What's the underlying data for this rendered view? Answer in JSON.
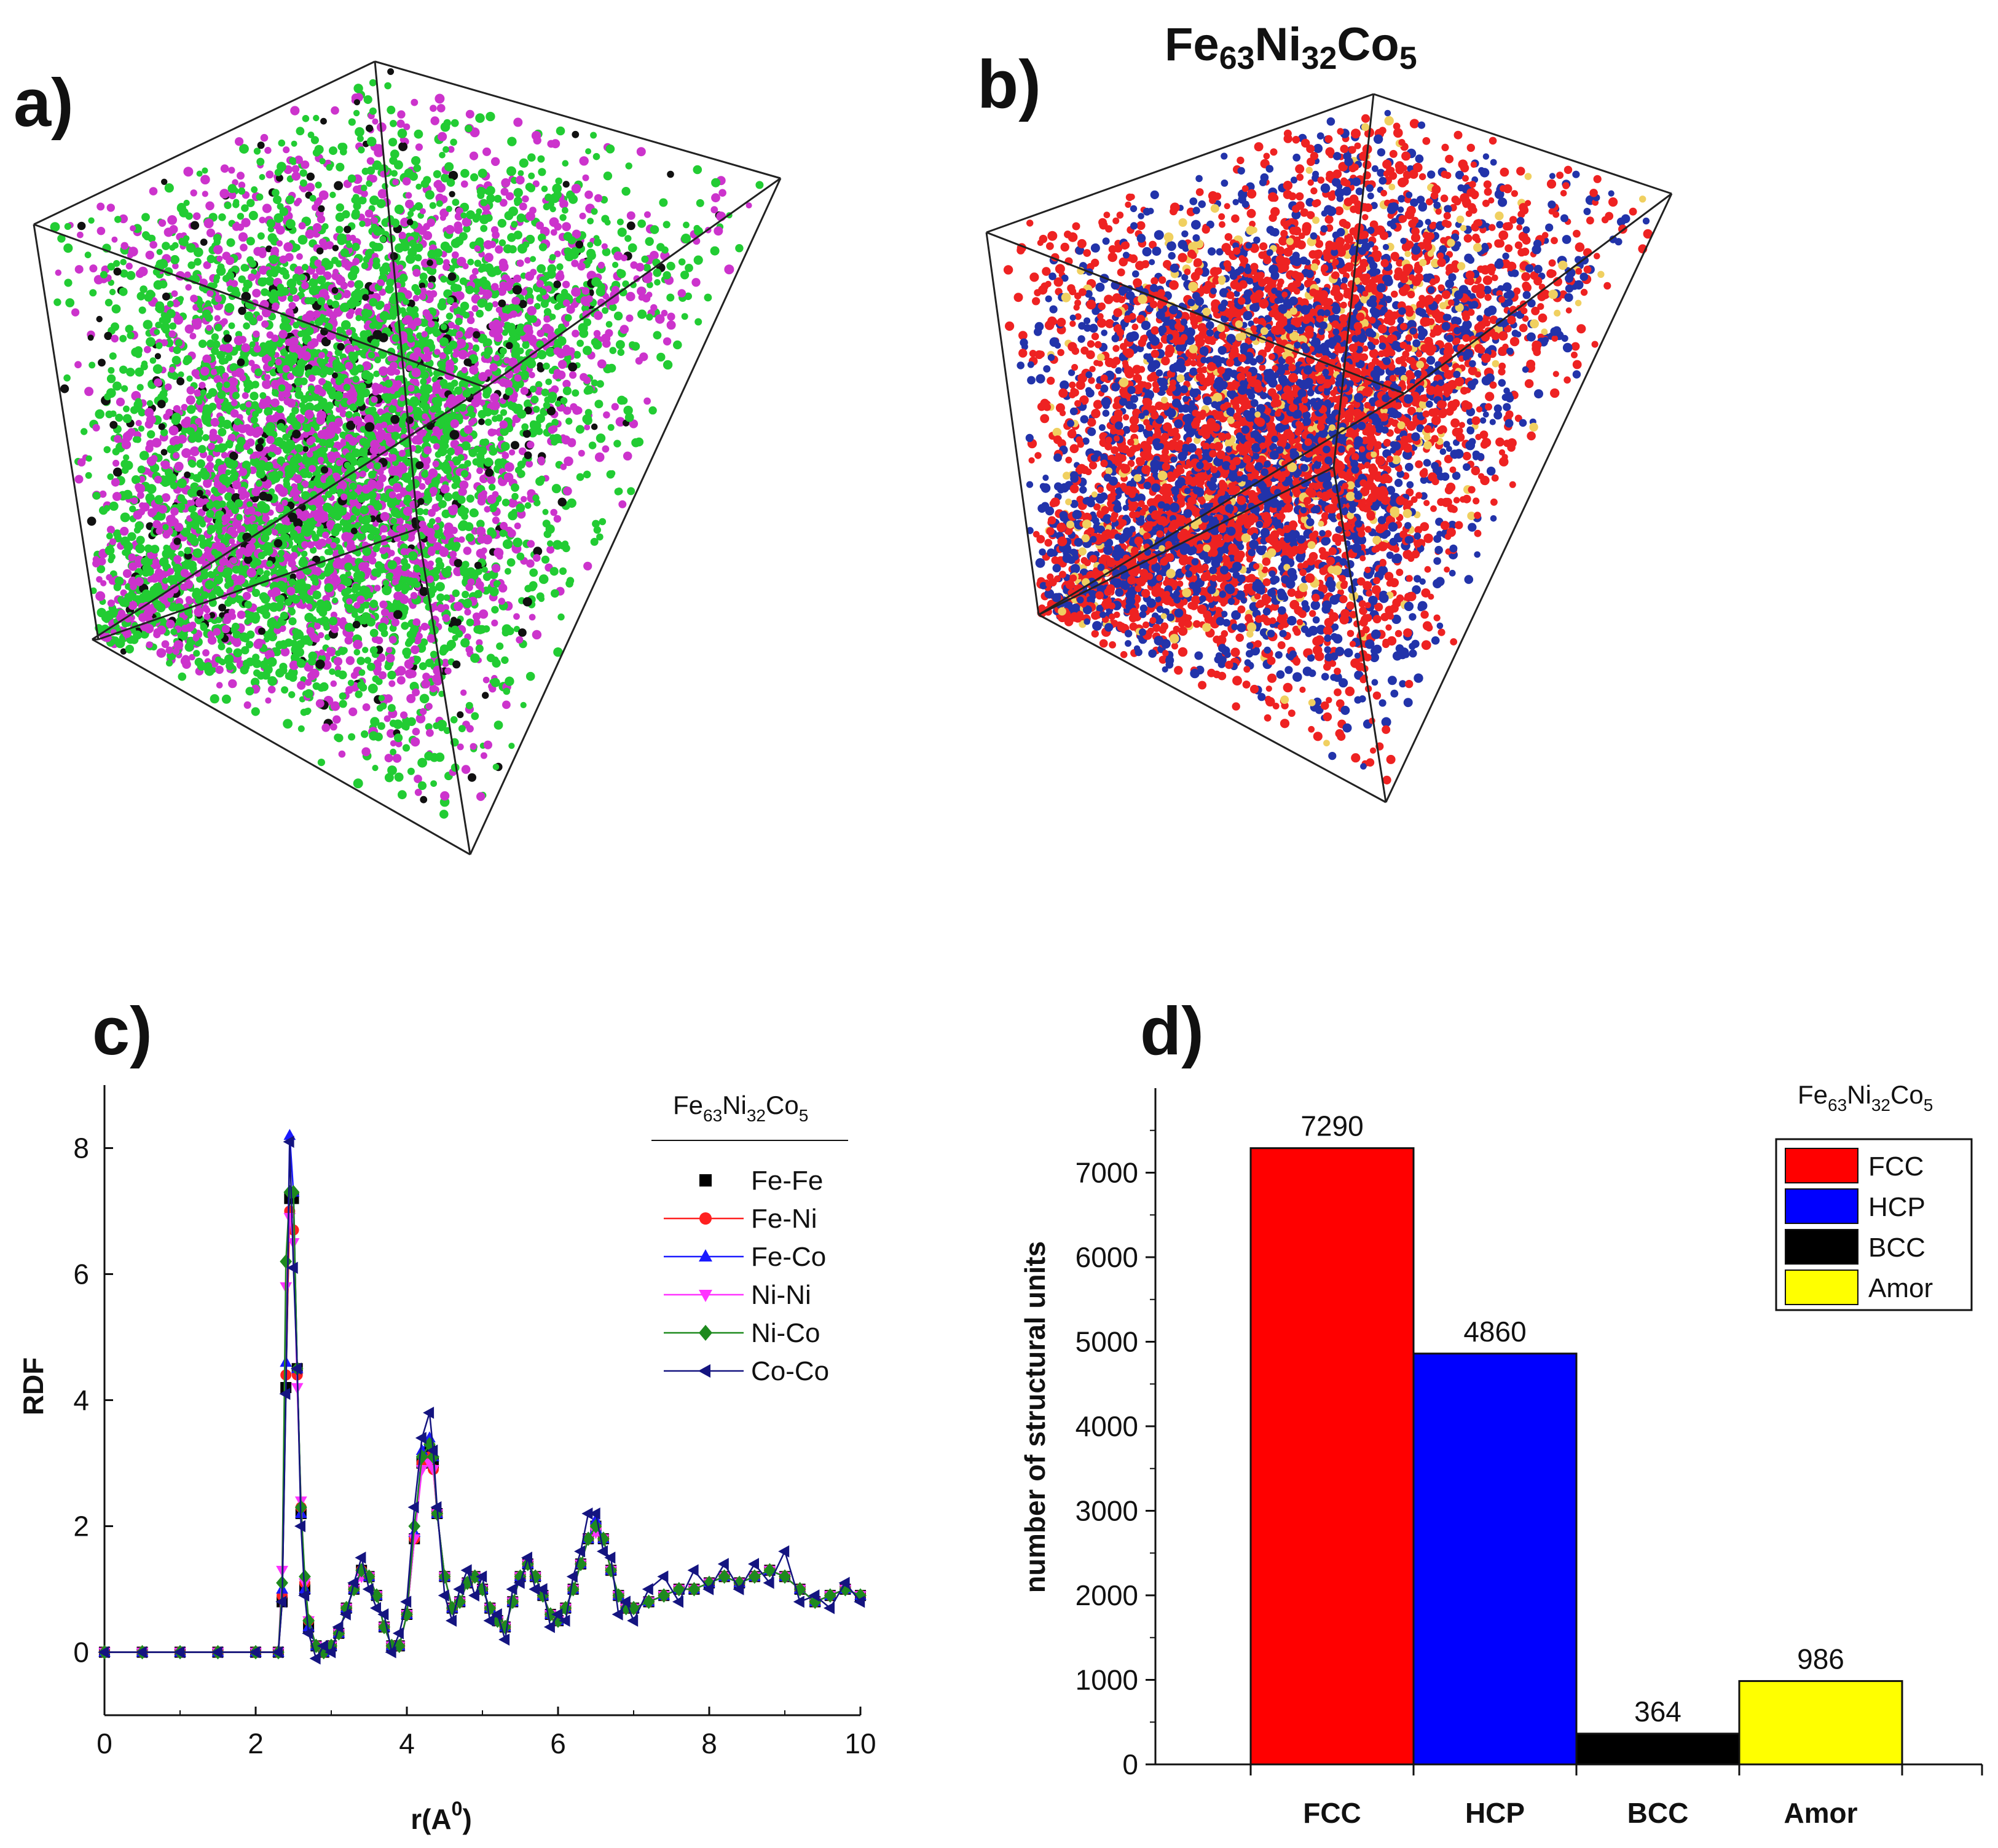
{
  "panels": {
    "a": {
      "label": "a)",
      "box_edge_color": "#222222",
      "atom_colors": [
        "#22cc33",
        "#cc33cc",
        "#111111"
      ]
    },
    "b": {
      "label": "b)",
      "title_base": [
        "Fe",
        "Ni",
        "Co"
      ],
      "title_sub": [
        "63",
        "32",
        "5"
      ],
      "box_edge_color": "#222222",
      "atom_colors": [
        "#ee2222",
        "#2233aa",
        "#f0d060"
      ]
    }
  },
  "chart_data": [
    {
      "id": "c",
      "panel_label": "c)",
      "type": "line",
      "xlabel": "r(A",
      "xlabel_sup": "0",
      "xlabel_close": ")",
      "ylabel": "RDF",
      "xlim": [
        0,
        10
      ],
      "ylim": [
        -1,
        9
      ],
      "xticks": [
        "0",
        "2",
        "4",
        "6",
        "8",
        "10"
      ],
      "yticks": [
        "0",
        "2",
        "4",
        "6",
        "8"
      ],
      "composition": {
        "base": [
          "Fe",
          "Ni",
          "Co"
        ],
        "sub": [
          "63",
          "32",
          "5"
        ]
      },
      "x": [
        0,
        0.5,
        1.0,
        1.5,
        2.0,
        2.3,
        2.35,
        2.4,
        2.45,
        2.5,
        2.55,
        2.6,
        2.65,
        2.7,
        2.8,
        2.9,
        3.0,
        3.1,
        3.2,
        3.3,
        3.4,
        3.5,
        3.6,
        3.7,
        3.8,
        3.9,
        4.0,
        4.1,
        4.2,
        4.3,
        4.35,
        4.4,
        4.5,
        4.6,
        4.7,
        4.8,
        4.9,
        5.0,
        5.1,
        5.2,
        5.3,
        5.4,
        5.5,
        5.6,
        5.7,
        5.8,
        5.9,
        6.0,
        6.1,
        6.2,
        6.3,
        6.4,
        6.5,
        6.6,
        6.7,
        6.8,
        6.9,
        7.0,
        7.2,
        7.4,
        7.6,
        7.8,
        8.0,
        8.2,
        8.4,
        8.6,
        8.8,
        9.0,
        9.2,
        9.4,
        9.6,
        9.8,
        10.0
      ],
      "series": [
        {
          "name": "Fe-Fe",
          "color": "#000000",
          "marker": "square",
          "values": [
            0,
            0,
            0,
            0,
            0,
            0,
            0.8,
            4.2,
            7.2,
            7.2,
            4.5,
            2.2,
            1.0,
            0.4,
            0.1,
            0.0,
            0.1,
            0.3,
            0.7,
            1.0,
            1.3,
            1.2,
            0.9,
            0.4,
            0.1,
            0.1,
            0.6,
            1.8,
            3.0,
            3.2,
            3.0,
            2.2,
            1.2,
            0.7,
            0.8,
            1.1,
            1.2,
            1.0,
            0.7,
            0.5,
            0.4,
            0.8,
            1.2,
            1.4,
            1.2,
            0.9,
            0.6,
            0.5,
            0.7,
            1.0,
            1.4,
            1.8,
            2.0,
            1.8,
            1.3,
            0.9,
            0.7,
            0.7,
            0.8,
            0.9,
            1.0,
            1.0,
            1.1,
            1.2,
            1.1,
            1.2,
            1.3,
            1.2,
            1.0,
            0.8,
            0.9,
            1.0,
            0.9
          ]
        },
        {
          "name": "Fe-Ni",
          "color": "#ff2020",
          "marker": "circle",
          "values": [
            0,
            0,
            0,
            0,
            0,
            0,
            0.9,
            4.4,
            7.0,
            6.7,
            4.4,
            2.3,
            1.1,
            0.5,
            0.1,
            0.0,
            0.1,
            0.3,
            0.7,
            1.0,
            1.3,
            1.2,
            0.9,
            0.4,
            0.1,
            0.1,
            0.6,
            1.8,
            3.0,
            3.1,
            2.9,
            2.2,
            1.2,
            0.7,
            0.8,
            1.1,
            1.2,
            1.0,
            0.7,
            0.5,
            0.4,
            0.8,
            1.2,
            1.4,
            1.2,
            0.9,
            0.6,
            0.5,
            0.7,
            1.0,
            1.4,
            1.8,
            2.0,
            1.8,
            1.3,
            0.9,
            0.7,
            0.7,
            0.8,
            0.9,
            1.0,
            1.0,
            1.1,
            1.2,
            1.1,
            1.2,
            1.3,
            1.2,
            1.0,
            0.8,
            0.9,
            1.0,
            0.9
          ]
        },
        {
          "name": "Fe-Co",
          "color": "#1a1aff",
          "marker": "triangle-up",
          "values": [
            0,
            0,
            0,
            0,
            0,
            0,
            1.0,
            4.6,
            8.2,
            7.3,
            4.5,
            2.2,
            1.0,
            0.4,
            0.1,
            0.0,
            0.1,
            0.3,
            0.7,
            1.0,
            1.3,
            1.2,
            0.9,
            0.4,
            0.1,
            0.1,
            0.6,
            1.9,
            3.2,
            3.4,
            3.1,
            2.2,
            1.2,
            0.7,
            0.8,
            1.1,
            1.2,
            1.0,
            0.7,
            0.5,
            0.4,
            0.8,
            1.2,
            1.4,
            1.2,
            0.9,
            0.6,
            0.5,
            0.7,
            1.0,
            1.4,
            1.8,
            2.1,
            1.8,
            1.3,
            0.9,
            0.7,
            0.7,
            0.8,
            0.9,
            1.0,
            1.0,
            1.1,
            1.2,
            1.1,
            1.2,
            1.3,
            1.2,
            1.0,
            0.8,
            0.9,
            1.0,
            0.9
          ]
        },
        {
          "name": "Ni-Ni",
          "color": "#ff33ff",
          "marker": "triangle-down",
          "values": [
            0,
            0,
            0,
            0,
            0,
            0,
            1.3,
            5.8,
            6.9,
            6.5,
            4.2,
            2.4,
            1.1,
            0.5,
            0.1,
            0.0,
            0.1,
            0.3,
            0.7,
            1.0,
            1.2,
            1.2,
            0.9,
            0.4,
            0.1,
            0.1,
            0.6,
            1.8,
            2.9,
            3.0,
            2.9,
            2.2,
            1.2,
            0.7,
            0.8,
            1.1,
            1.2,
            1.0,
            0.7,
            0.5,
            0.4,
            0.8,
            1.2,
            1.4,
            1.2,
            0.9,
            0.6,
            0.5,
            0.7,
            1.0,
            1.4,
            1.8,
            1.9,
            1.8,
            1.3,
            0.9,
            0.7,
            0.7,
            0.8,
            0.9,
            1.0,
            1.0,
            1.1,
            1.2,
            1.1,
            1.2,
            1.3,
            1.2,
            1.0,
            0.8,
            0.9,
            1.0,
            0.9
          ]
        },
        {
          "name": "Ni-Co",
          "color": "#1e8a1e",
          "marker": "diamond",
          "values": [
            0,
            0,
            0,
            0,
            0,
            0,
            1.1,
            6.2,
            7.3,
            7.3,
            4.5,
            2.3,
            1.2,
            0.5,
            0.1,
            0.0,
            0.1,
            0.3,
            0.7,
            1.0,
            1.3,
            1.2,
            0.9,
            0.4,
            0.1,
            0.1,
            0.6,
            2.0,
            3.1,
            3.3,
            3.1,
            2.2,
            1.2,
            0.7,
            0.8,
            1.1,
            1.2,
            1.0,
            0.7,
            0.5,
            0.4,
            0.8,
            1.2,
            1.4,
            1.2,
            0.9,
            0.6,
            0.5,
            0.7,
            1.0,
            1.4,
            1.8,
            2.0,
            1.8,
            1.3,
            0.9,
            0.7,
            0.7,
            0.8,
            0.9,
            1.0,
            1.0,
            1.1,
            1.2,
            1.1,
            1.2,
            1.3,
            1.2,
            1.0,
            0.8,
            0.9,
            1.0,
            0.9
          ]
        },
        {
          "name": "Co-Co",
          "color": "#141480",
          "marker": "triangle-left",
          "values": [
            0,
            0,
            0,
            0,
            0,
            0,
            0.8,
            4.1,
            8.1,
            6.1,
            4.5,
            2.0,
            0.9,
            0.3,
            -0.1,
            0.1,
            0.0,
            0.4,
            0.6,
            1.1,
            1.5,
            1.0,
            0.7,
            0.6,
            0.0,
            0.3,
            0.8,
            2.3,
            3.4,
            3.8,
            3.2,
            2.3,
            0.9,
            0.5,
            1.0,
            1.3,
            0.9,
            1.2,
            0.5,
            0.6,
            0.2,
            1.0,
            1.1,
            1.5,
            1.0,
            1.0,
            0.4,
            0.6,
            0.5,
            1.2,
            1.6,
            2.2,
            2.2,
            1.6,
            1.5,
            0.6,
            0.8,
            0.5,
            1.0,
            1.2,
            0.8,
            1.3,
            1.0,
            1.4,
            1.0,
            1.4,
            1.1,
            1.6,
            0.8,
            0.9,
            0.7,
            1.1,
            0.8
          ]
        }
      ]
    },
    {
      "id": "d",
      "panel_label": "d)",
      "type": "bar",
      "ylabel": "number of structural units",
      "xlabel": "",
      "ylim": [
        0,
        8000
      ],
      "yticks": [
        "0",
        "1000",
        "2000",
        "3000",
        "4000",
        "5000",
        "6000",
        "7000"
      ],
      "categories": [
        "FCC",
        "HCP",
        "BCC",
        "Amor"
      ],
      "values": [
        7290,
        4860,
        364,
        986
      ],
      "value_labels": [
        "7290",
        "4860",
        "364",
        "986"
      ],
      "colors": [
        "#ff0000",
        "#0000ff",
        "#000000",
        "#ffff00"
      ],
      "legend": [
        "FCC",
        "HCP",
        "BCC",
        "Amor"
      ],
      "legend_position": "top-right",
      "composition": {
        "base": [
          "Fe",
          "Ni",
          "Co"
        ],
        "sub": [
          "63",
          "32",
          "5"
        ]
      }
    }
  ]
}
